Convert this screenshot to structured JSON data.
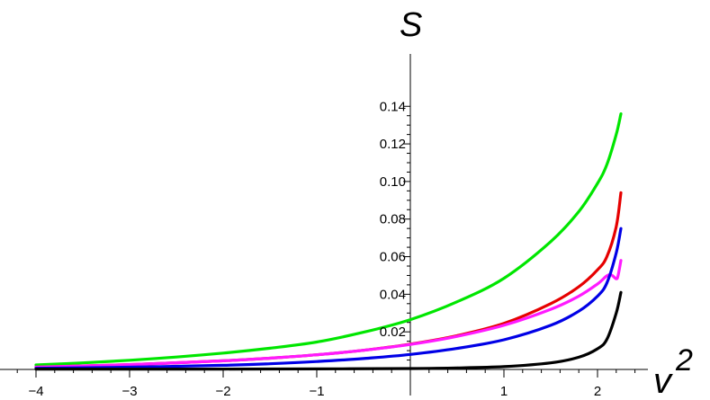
{
  "chart_data": {
    "type": "line",
    "title": "",
    "xlabel": "v",
    "xlabel_superscript": "2",
    "ylabel": "S",
    "xlim": [
      -4.25,
      2.85
    ],
    "ylim": [
      0,
      0.145
    ],
    "grid": false,
    "x_ticks": [
      -4,
      -3,
      -2,
      -1,
      1,
      2
    ],
    "x_tick_labels": [
      "−4",
      "−3",
      "−2",
      "−1",
      "1",
      "2"
    ],
    "y_ticks": [
      0.02,
      0.04,
      0.06,
      0.08,
      0.1,
      0.12,
      0.14
    ],
    "y_tick_labels": [
      "0.02",
      "0.04",
      "0.06",
      "0.08",
      "0.10",
      "0.12",
      "0.14"
    ],
    "series": [
      {
        "color": "#00e600",
        "x": [
          -4,
          -3.5,
          -3,
          -2.5,
          -2,
          -1.5,
          -1,
          -0.5,
          0,
          0.5,
          1,
          1.5,
          1.8,
          2,
          2.1,
          2.2,
          2.25
        ],
        "y": [
          0.0024,
          0.0035,
          0.0049,
          0.0066,
          0.0087,
          0.0113,
          0.0146,
          0.0198,
          0.0265,
          0.036,
          0.0485,
          0.068,
          0.084,
          0.099,
          0.109,
          0.125,
          0.136
        ]
      },
      {
        "color": "#e60000",
        "x": [
          -4,
          -3,
          -2,
          -1.5,
          -1,
          -0.5,
          0,
          0.5,
          1,
          1.5,
          1.8,
          2,
          2.1,
          2.2,
          2.25
        ],
        "y": [
          0.0012,
          0.0026,
          0.0046,
          0.006,
          0.0078,
          0.0102,
          0.0135,
          0.018,
          0.0245,
          0.035,
          0.044,
          0.053,
          0.06,
          0.076,
          0.094
        ]
      },
      {
        "color": "#ff1aff",
        "x": [
          -4,
          -3,
          -2,
          -1.5,
          -1,
          -0.5,
          0,
          0.5,
          1,
          1.5,
          1.8,
          2,
          2.1,
          2.15,
          2.2,
          2.22,
          2.25
        ],
        "y": [
          0.0012,
          0.0026,
          0.0046,
          0.006,
          0.0078,
          0.0102,
          0.0133,
          0.0176,
          0.0235,
          0.032,
          0.039,
          0.0455,
          0.0498,
          0.0502,
          0.0482,
          0.05,
          0.058
        ]
      },
      {
        "color": "#0000e6",
        "x": [
          -4,
          -3,
          -2,
          -1.5,
          -1,
          -0.5,
          0,
          0.5,
          1,
          1.5,
          1.8,
          2,
          2.1,
          2.2,
          2.25
        ],
        "y": [
          0.0006,
          0.0012,
          0.0022,
          0.003,
          0.0042,
          0.0058,
          0.008,
          0.0112,
          0.0158,
          0.0235,
          0.031,
          0.039,
          0.046,
          0.062,
          0.075
        ]
      },
      {
        "color": "#000000",
        "x": [
          -4,
          -3,
          -2,
          -1,
          0,
          0.5,
          1,
          1.5,
          1.8,
          2,
          2.1,
          2.2,
          2.25
        ],
        "y": [
          0.0002,
          0.0002,
          0.0002,
          0.0003,
          0.0005,
          0.0008,
          0.0015,
          0.0035,
          0.0065,
          0.011,
          0.016,
          0.03,
          0.041
        ]
      }
    ]
  }
}
